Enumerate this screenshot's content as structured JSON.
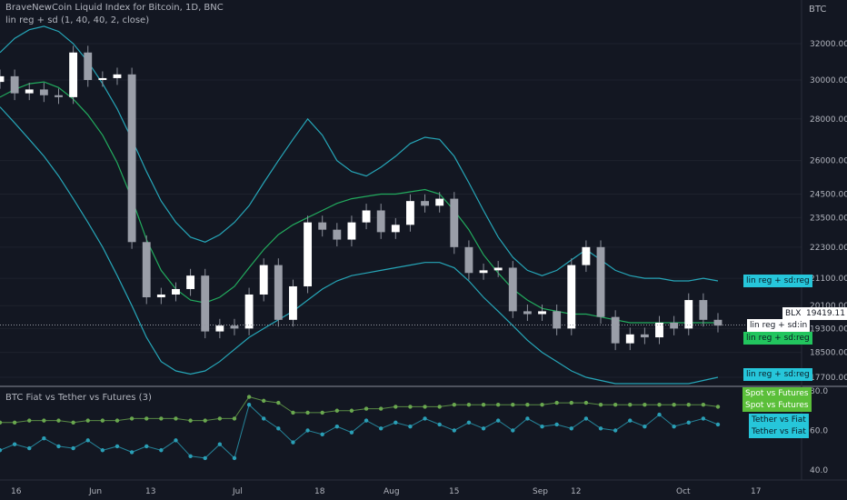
{
  "header": {
    "title": "BraveNewCoin Liquid Index for Bitcoin, 1D, BNC",
    "indicator": "lin reg + sd (1, 40, 40, 2, close)",
    "lower_title": "BTC Fiat vs Tether vs Futures (3)",
    "currency": "BTC"
  },
  "price_labels": {
    "blx": "BLX",
    "blx_value": "19419.11",
    "reg_upper": "lin reg + sd:reg",
    "reg_mid": "lin reg + sd:in",
    "reg_green": "lin reg + sd:reg",
    "reg_lower": "lin reg + sd:reg"
  },
  "lower_labels": {
    "spot1": "Spot vs Futures",
    "spot2": "Spot vs Futures",
    "tether1": "Tether vs Fiat",
    "tether2": "Tether vs Fiat"
  },
  "colors": {
    "background": "#131722",
    "candle": "#ffffff",
    "band": "#26a6b8",
    "mid": "#22ab5e",
    "spot": "#6aa84f",
    "tether": "#2a9fb6",
    "label_cyan": "#26c6da",
    "label_green": "#22c55e"
  },
  "chart_data": [
    {
      "type": "candlestick",
      "title": "BraveNewCoin Liquid Index for Bitcoin, 1D, BNC",
      "y_scale": "log",
      "y_ticks": [
        "32000.00",
        "30000.00",
        "28000.00",
        "26000.00",
        "24500.00",
        "23500.00",
        "22300.00",
        "21100.00",
        "20100.00",
        "19300.00",
        "18500.00",
        "17700.00"
      ],
      "x_ticks": [
        "16",
        "Jun",
        "13",
        "Jul",
        "18",
        "Aug",
        "15",
        "Sep",
        "12",
        "Oct",
        "17"
      ],
      "last_price": 19419.11,
      "x": [
        "May 16",
        "May 19",
        "May 22",
        "May 25",
        "May 28",
        "May 31",
        "Jun 3",
        "Jun 6",
        "Jun 9",
        "Jun 12",
        "Jun 15",
        "Jun 18",
        "Jun 21",
        "Jun 24",
        "Jun 27",
        "Jun 30",
        "Jul 3",
        "Jul 6",
        "Jul 9",
        "Jul 12",
        "Jul 15",
        "Jul 18",
        "Jul 21",
        "Jul 24",
        "Jul 27",
        "Jul 30",
        "Aug 2",
        "Aug 5",
        "Aug 8",
        "Aug 11",
        "Aug 14",
        "Aug 17",
        "Aug 20",
        "Aug 23",
        "Aug 26",
        "Aug 29",
        "Sep 1",
        "Sep 4",
        "Sep 7",
        "Sep 10",
        "Sep 13",
        "Sep 16",
        "Sep 19",
        "Sep 22",
        "Sep 25",
        "Sep 28",
        "Oct 1",
        "Oct 4",
        "Oct 7",
        "Oct 10"
      ],
      "close": [
        30200,
        29300,
        29500,
        29200,
        29100,
        31500,
        30000,
        30100,
        30300,
        22500,
        20400,
        20500,
        20700,
        21200,
        19200,
        19400,
        19300,
        20500,
        21600,
        19600,
        20800,
        23300,
        23000,
        22600,
        23300,
        23800,
        22900,
        23200,
        24200,
        24000,
        24300,
        22300,
        21300,
        21400,
        21500,
        19900,
        19800,
        19900,
        19300,
        21600,
        22300,
        19700,
        18800,
        19100,
        19000,
        19500,
        19300,
        20300,
        19600,
        19400
      ],
      "series": [
        {
          "name": "lin reg + sd:reg (upper)",
          "values": [
            31500,
            32300,
            32800,
            33000,
            32700,
            32000,
            31000,
            29800,
            28500,
            27000,
            25500,
            24200,
            23300,
            22700,
            22500,
            22800,
            23300,
            24000,
            25000,
            26000,
            27000,
            28000,
            27200,
            26000,
            25500,
            25300,
            25700,
            26200,
            26800,
            27100,
            27000,
            26200,
            25000,
            23800,
            22700,
            21900,
            21400,
            21200,
            21400,
            21800,
            22200,
            21800,
            21400,
            21200,
            21100,
            21100,
            21000,
            21000,
            21100,
            21000
          ]
        },
        {
          "name": "lin reg + sd:reg (mid)",
          "values": [
            29100,
            29500,
            29800,
            29900,
            29600,
            29000,
            28200,
            27200,
            25900,
            24300,
            22600,
            21400,
            20700,
            20300,
            20200,
            20400,
            20800,
            21500,
            22200,
            22800,
            23200,
            23500,
            23800,
            24100,
            24300,
            24400,
            24500,
            24500,
            24600,
            24700,
            24500,
            23800,
            23000,
            22000,
            21300,
            20700,
            20300,
            20000,
            19900,
            19800,
            19800,
            19700,
            19600,
            19500,
            19500,
            19500,
            19500,
            19500,
            19500,
            19500
          ]
        },
        {
          "name": "lin reg + sd:reg (lower)",
          "values": [
            28600,
            27800,
            27000,
            26200,
            25300,
            24300,
            23300,
            22300,
            21200,
            20100,
            19000,
            18200,
            17900,
            17800,
            17900,
            18200,
            18600,
            19000,
            19300,
            19600,
            19900,
            20300,
            20700,
            21000,
            21200,
            21300,
            21400,
            21500,
            21600,
            21700,
            21700,
            21500,
            21000,
            20400,
            19900,
            19400,
            18900,
            18500,
            18200,
            17900,
            17700,
            17600,
            17500,
            17500,
            17500,
            17500,
            17500,
            17500,
            17600,
            17700
          ]
        }
      ]
    },
    {
      "type": "line",
      "title": "BTC Fiat vs Tether vs Futures (3)",
      "y_ticks": [
        80.0,
        60.0,
        40.0
      ],
      "x_ticks": [
        "16",
        "Jun",
        "13",
        "Jul",
        "18",
        "Aug",
        "15",
        "Sep",
        "12",
        "Oct",
        "17"
      ],
      "x": [
        "May 16",
        "May 19",
        "May 22",
        "May 25",
        "May 28",
        "May 31",
        "Jun 3",
        "Jun 6",
        "Jun 9",
        "Jun 12",
        "Jun 15",
        "Jun 18",
        "Jun 21",
        "Jun 24",
        "Jun 27",
        "Jun 30",
        "Jul 3",
        "Jul 6",
        "Jul 9",
        "Jul 12",
        "Jul 15",
        "Jul 18",
        "Jul 21",
        "Jul 24",
        "Jul 27",
        "Jul 30",
        "Aug 2",
        "Aug 5",
        "Aug 8",
        "Aug 11",
        "Aug 14",
        "Aug 17",
        "Aug 20",
        "Aug 23",
        "Aug 26",
        "Aug 29",
        "Sep 1",
        "Sep 4",
        "Sep 7",
        "Sep 10",
        "Sep 13",
        "Sep 16",
        "Sep 19",
        "Sep 22",
        "Sep 25",
        "Sep 28",
        "Oct 1",
        "Oct 4",
        "Oct 7",
        "Oct 10"
      ],
      "series": [
        {
          "name": "Spot vs Futures",
          "values": [
            64,
            64,
            65,
            65,
            65,
            64,
            65,
            65,
            65,
            66,
            66,
            66,
            66,
            65,
            65,
            66,
            66,
            77,
            75,
            74,
            69,
            69,
            69,
            70,
            70,
            71,
            71,
            72,
            72,
            72,
            72,
            73,
            73,
            73,
            73,
            73,
            73,
            73,
            74,
            74,
            74,
            73,
            73,
            73,
            73,
            73,
            73,
            73,
            73,
            72
          ]
        },
        {
          "name": "Tether vs Fiat",
          "values": [
            50,
            53,
            51,
            56,
            52,
            51,
            55,
            50,
            52,
            49,
            52,
            50,
            55,
            47,
            46,
            53,
            46,
            73,
            66,
            61,
            54,
            60,
            58,
            62,
            59,
            65,
            61,
            64,
            62,
            66,
            63,
            60,
            64,
            61,
            65,
            60,
            66,
            62,
            63,
            61,
            66,
            61,
            60,
            65,
            62,
            68,
            62,
            64,
            66,
            63
          ]
        }
      ]
    }
  ]
}
